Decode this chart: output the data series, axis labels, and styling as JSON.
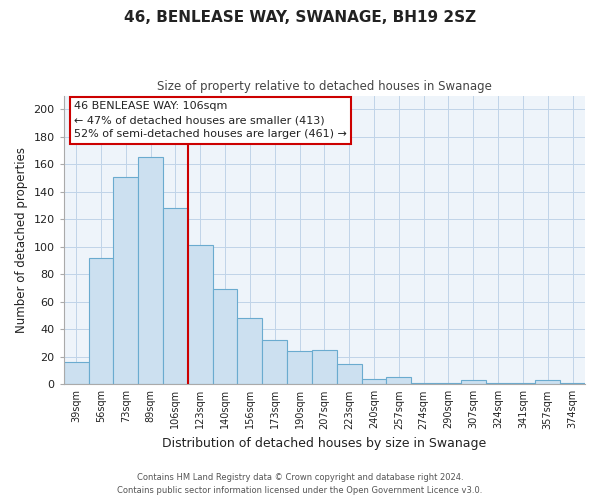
{
  "title": "46, BENLEASE WAY, SWANAGE, BH19 2SZ",
  "subtitle": "Size of property relative to detached houses in Swanage",
  "xlabel": "Distribution of detached houses by size in Swanage",
  "ylabel": "Number of detached properties",
  "categories": [
    "39sqm",
    "56sqm",
    "73sqm",
    "89sqm",
    "106sqm",
    "123sqm",
    "140sqm",
    "156sqm",
    "173sqm",
    "190sqm",
    "207sqm",
    "223sqm",
    "240sqm",
    "257sqm",
    "274sqm",
    "290sqm",
    "307sqm",
    "324sqm",
    "341sqm",
    "357sqm",
    "374sqm"
  ],
  "values": [
    16,
    92,
    151,
    165,
    128,
    101,
    69,
    48,
    32,
    24,
    25,
    15,
    4,
    5,
    1,
    1,
    3,
    1,
    1,
    3,
    1
  ],
  "bar_color": "#cce0f0",
  "bar_edge_color": "#6aabcf",
  "highlight_index": 4,
  "highlight_color": "#cc0000",
  "ylim": [
    0,
    210
  ],
  "yticks": [
    0,
    20,
    40,
    60,
    80,
    100,
    120,
    140,
    160,
    180,
    200
  ],
  "annotation_title": "46 BENLEASE WAY: 106sqm",
  "annotation_line1": "← 47% of detached houses are smaller (413)",
  "annotation_line2": "52% of semi-detached houses are larger (461) →",
  "annotation_box_color": "#ffffff",
  "annotation_box_edge": "#cc0000",
  "plot_bg_color": "#eef4fa",
  "footer1": "Contains HM Land Registry data © Crown copyright and database right 2024.",
  "footer2": "Contains public sector information licensed under the Open Government Licence v3.0."
}
